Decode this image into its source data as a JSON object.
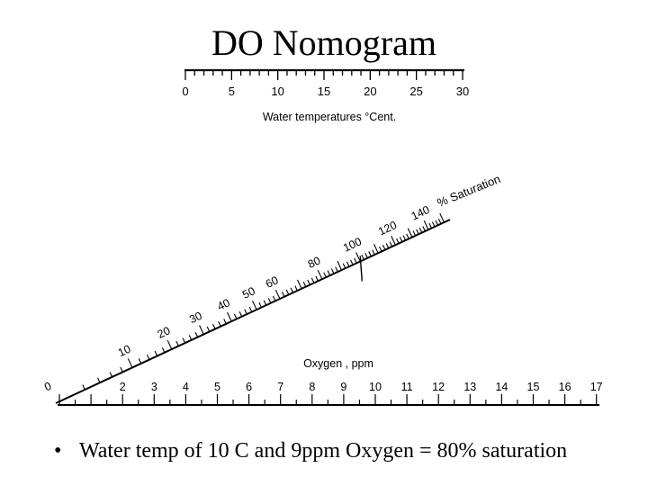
{
  "title": "DO Nomogram",
  "temperature_scale": {
    "label": "Water temperatures °Cent.",
    "tick_labels": [
      "0",
      "5",
      "10",
      "15",
      "20",
      "25",
      "30"
    ]
  },
  "saturation_scale": {
    "label": "% Saturation",
    "tick_labels": [
      "0",
      "10",
      "20",
      "30",
      "40",
      "50",
      "60",
      "80",
      "100",
      "120",
      "140"
    ]
  },
  "oxygen_scale": {
    "label": "Oxygen , ppm",
    "tick_labels": [
      "2",
      "3",
      "4",
      "5",
      "6",
      "7",
      "8",
      "9",
      "10",
      "11",
      "12",
      "13",
      "14",
      "15",
      "16",
      "17"
    ]
  },
  "bullet": {
    "text": "Water temp of 10 C and 9ppm Oxygen = 80% saturation"
  }
}
